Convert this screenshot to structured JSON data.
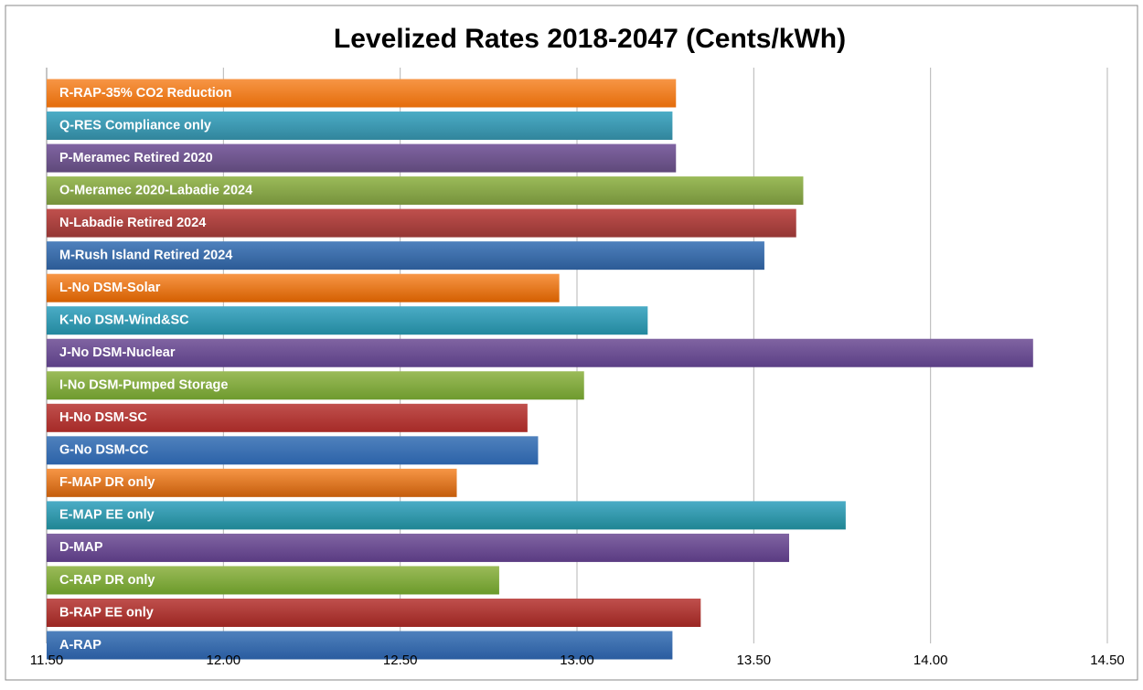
{
  "chart_data": {
    "type": "bar",
    "orientation": "horizontal",
    "title": "Levelized Rates 2018-2047 (Cents/kWh)",
    "xlabel": "",
    "ylabel": "",
    "xlim": [
      11.5,
      14.5
    ],
    "x_ticks": [
      "11.50",
      "12.00",
      "12.50",
      "13.00",
      "13.50",
      "14.00",
      "14.50"
    ],
    "x_tick_values": [
      11.5,
      12.0,
      12.5,
      13.0,
      13.5,
      14.0,
      14.5
    ],
    "grid": "vertical",
    "legend": "none",
    "categories": [
      "R-RAP-35% CO2 Reduction",
      "Q-RES Compliance only",
      "P-Meramec Retired 2020",
      "O-Meramec 2020-Labadie 2024",
      "N-Labadie Retired 2024",
      "M-Rush Island Retired 2024",
      "L-No DSM-Solar",
      "K-No DSM-Wind&SC",
      "J-No DSM-Nuclear",
      "I-No DSM-Pumped Storage",
      "H-No DSM-SC",
      "G-No DSM-CC",
      "F-MAP DR only",
      "E-MAP EE only",
      "D-MAP",
      "C-RAP DR only",
      "B-RAP EE only",
      "A-RAP"
    ],
    "values": [
      13.28,
      13.27,
      13.28,
      13.64,
      13.62,
      13.53,
      12.95,
      13.2,
      14.29,
      13.02,
      12.86,
      12.89,
      12.66,
      13.76,
      13.6,
      12.78,
      13.35,
      13.27
    ],
    "colors": [
      "#F79646",
      "#4BACC6",
      "#8064A2",
      "#9BBB59",
      "#C0504D",
      "#4F81BD",
      "#F79646",
      "#4BACC6",
      "#8064A2",
      "#9BBB59",
      "#C0504D",
      "#4F81BD",
      "#F79646",
      "#4BACC6",
      "#8064A2",
      "#9BBB59",
      "#C0504D",
      "#4F81BD"
    ],
    "dark_colors": [
      "#E46C0A",
      "#31859C",
      "#5F497A",
      "#76923C",
      "#943634",
      "#2C5B96",
      "#D45F00",
      "#23889E",
      "#5B3F85",
      "#6E9A2E",
      "#A52A27",
      "#2C62A8",
      "#C45D0C",
      "#1F8593",
      "#5A3B82",
      "#6B9A2A",
      "#9A2622",
      "#2A5C9F"
    ]
  }
}
